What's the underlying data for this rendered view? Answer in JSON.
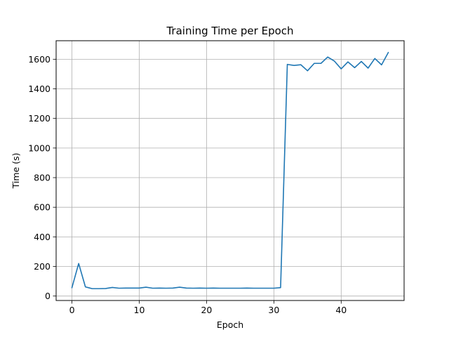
{
  "chart_data": {
    "type": "line",
    "title": "Training Time per Epoch",
    "xlabel": "Epoch",
    "ylabel": "Time (s)",
    "xlim": [
      -2.35,
      49.35
    ],
    "ylim": [
      -30,
      1725
    ],
    "xticks": [
      0,
      10,
      20,
      30,
      40
    ],
    "yticks": [
      0,
      200,
      400,
      600,
      800,
      1000,
      1200,
      1400,
      1600
    ],
    "grid": true,
    "line_color": "#1f77b4",
    "series": [
      {
        "x": [
          0,
          1,
          2,
          3,
          4,
          5,
          6,
          7,
          8,
          9,
          10,
          11,
          12,
          13,
          14,
          15,
          16,
          17,
          18,
          19,
          20,
          21,
          22,
          23,
          24,
          25,
          26,
          27,
          28,
          29,
          30,
          31,
          32,
          33,
          34,
          35,
          36,
          37,
          38,
          39,
          40,
          41,
          42,
          43,
          44,
          45,
          46,
          47
        ],
        "values": [
          57,
          220,
          62,
          50,
          50,
          51,
          58,
          53,
          54,
          54,
          54,
          60,
          53,
          54,
          53,
          54,
          60,
          54,
          53,
          54,
          53,
          54,
          53,
          53,
          53,
          53,
          54,
          53,
          53,
          53,
          53,
          57,
          1565,
          1558,
          1563,
          1522,
          1572,
          1572,
          1615,
          1587,
          1535,
          1582,
          1543,
          1585,
          1540,
          1605,
          1562,
          1645
        ]
      }
    ]
  }
}
